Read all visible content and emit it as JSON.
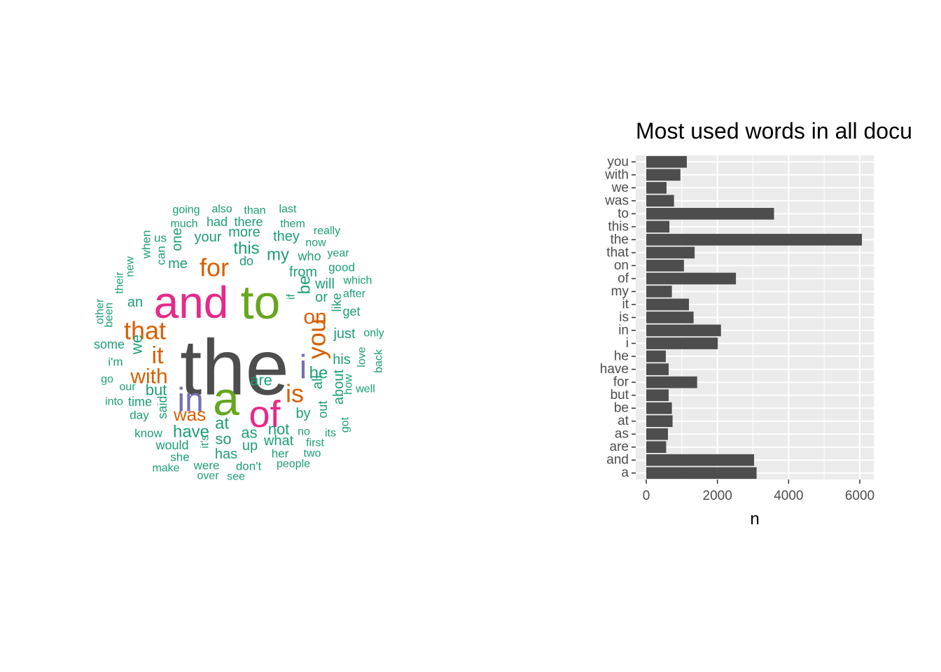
{
  "palette": {
    "gray": "#4d4d4d",
    "green": "#1b9e77",
    "orange": "#d95f02",
    "purple": "#7570b3",
    "magenta": "#e7298a",
    "olive": "#66a61e",
    "panel_bg": "#ebebeb",
    "bar": "#4d4d4d"
  },
  "wordcloud": {
    "words": [
      {
        "text": "the",
        "color": "gray"
      },
      {
        "text": "and",
        "color": "magenta"
      },
      {
        "text": "to",
        "color": "olive"
      },
      {
        "text": "a",
        "color": "olive"
      },
      {
        "text": "of",
        "color": "magenta"
      },
      {
        "text": "in",
        "color": "purple"
      },
      {
        "text": "i",
        "color": "purple"
      },
      {
        "text": "for",
        "color": "orange"
      },
      {
        "text": "that",
        "color": "orange"
      },
      {
        "text": "is",
        "color": "orange"
      },
      {
        "text": "it",
        "color": "orange"
      },
      {
        "text": "you",
        "color": "orange"
      },
      {
        "text": "on",
        "color": "orange"
      },
      {
        "text": "with",
        "color": "orange"
      },
      {
        "text": "was",
        "color": "orange"
      },
      {
        "text": "this",
        "color": "green"
      },
      {
        "text": "my",
        "color": "green"
      },
      {
        "text": "be",
        "color": "green"
      },
      {
        "text": "he",
        "color": "green"
      },
      {
        "text": "have",
        "color": "green"
      },
      {
        "text": "at",
        "color": "green"
      },
      {
        "text": "as",
        "color": "green"
      },
      {
        "text": "are",
        "color": "green"
      },
      {
        "text": "but",
        "color": "green"
      },
      {
        "text": "we",
        "color": "green"
      },
      {
        "text": "not",
        "color": "green"
      },
      {
        "text": "so",
        "color": "green"
      },
      {
        "text": "your",
        "color": "green"
      },
      {
        "text": "more",
        "color": "green"
      },
      {
        "text": "they",
        "color": "green"
      },
      {
        "text": "me",
        "color": "green"
      },
      {
        "text": "from",
        "color": "green"
      },
      {
        "text": "all",
        "color": "green"
      },
      {
        "text": "about",
        "color": "green"
      },
      {
        "text": "one",
        "color": "green"
      },
      {
        "text": "just",
        "color": "green"
      },
      {
        "text": "his",
        "color": "green"
      },
      {
        "text": "will",
        "color": "green"
      },
      {
        "text": "or",
        "color": "green"
      },
      {
        "text": "by",
        "color": "green"
      },
      {
        "text": "up",
        "color": "green"
      },
      {
        "text": "what",
        "color": "green"
      },
      {
        "text": "has",
        "color": "green"
      },
      {
        "text": "an",
        "color": "green"
      },
      {
        "text": "do",
        "color": "green"
      },
      {
        "text": "who",
        "color": "green"
      },
      {
        "text": "there",
        "color": "green"
      },
      {
        "text": "had",
        "color": "green"
      },
      {
        "text": "like",
        "color": "green"
      },
      {
        "text": "out",
        "color": "green"
      },
      {
        "text": "said",
        "color": "green"
      },
      {
        "text": "some",
        "color": "green"
      },
      {
        "text": "time",
        "color": "green"
      },
      {
        "text": "get",
        "color": "green"
      },
      {
        "text": "good",
        "color": "green"
      },
      {
        "text": "would",
        "color": "green"
      },
      {
        "text": "know",
        "color": "green"
      },
      {
        "text": "day",
        "color": "green"
      },
      {
        "text": "our",
        "color": "green"
      },
      {
        "text": "into",
        "color": "green"
      },
      {
        "text": "go",
        "color": "green"
      },
      {
        "text": "i'm",
        "color": "green"
      },
      {
        "text": "can",
        "color": "green"
      },
      {
        "text": "when",
        "color": "green"
      },
      {
        "text": "us",
        "color": "green"
      },
      {
        "text": "much",
        "color": "green"
      },
      {
        "text": "going",
        "color": "green"
      },
      {
        "text": "also",
        "color": "green"
      },
      {
        "text": "than",
        "color": "green"
      },
      {
        "text": "last",
        "color": "green"
      },
      {
        "text": "them",
        "color": "green"
      },
      {
        "text": "really",
        "color": "green"
      },
      {
        "text": "now",
        "color": "green"
      },
      {
        "text": "year",
        "color": "green"
      },
      {
        "text": "which",
        "color": "green"
      },
      {
        "text": "after",
        "color": "green"
      },
      {
        "text": "only",
        "color": "green"
      },
      {
        "text": "love",
        "color": "green"
      },
      {
        "text": "back",
        "color": "green"
      },
      {
        "text": "how",
        "color": "green"
      },
      {
        "text": "well",
        "color": "green"
      },
      {
        "text": "got",
        "color": "green"
      },
      {
        "text": "its",
        "color": "green"
      },
      {
        "text": "no",
        "color": "green"
      },
      {
        "text": "first",
        "color": "green"
      },
      {
        "text": "two",
        "color": "green"
      },
      {
        "text": "people",
        "color": "green"
      },
      {
        "text": "her",
        "color": "green"
      },
      {
        "text": "don't",
        "color": "green"
      },
      {
        "text": "see",
        "color": "green"
      },
      {
        "text": "over",
        "color": "green"
      },
      {
        "text": "were",
        "color": "green"
      },
      {
        "text": "it's",
        "color": "green"
      },
      {
        "text": "make",
        "color": "green"
      },
      {
        "text": "she",
        "color": "green"
      },
      {
        "text": "if",
        "color": "green"
      },
      {
        "text": "new",
        "color": "green"
      },
      {
        "text": "their",
        "color": "green"
      },
      {
        "text": "other",
        "color": "green"
      },
      {
        "text": "been",
        "color": "green"
      }
    ]
  },
  "chart_data": {
    "type": "bar",
    "orientation": "horizontal",
    "title": "Most used words in all docu",
    "xlabel": "n",
    "ylabel": "",
    "xlim": [
      0,
      6350
    ],
    "x_ticks": [
      0,
      2000,
      4000,
      6000
    ],
    "x_tick_labels": [
      "0",
      "2000",
      "4000",
      "6000"
    ],
    "grid": true,
    "categories": [
      "a",
      "and",
      "are",
      "as",
      "at",
      "be",
      "but",
      "for",
      "have",
      "he",
      "i",
      "in",
      "is",
      "it",
      "my",
      "of",
      "on",
      "that",
      "the",
      "this",
      "to",
      "was",
      "we",
      "with",
      "you"
    ],
    "values": [
      3100,
      3030,
      560,
      610,
      740,
      720,
      630,
      1430,
      630,
      550,
      2010,
      2100,
      1330,
      1200,
      720,
      2520,
      1060,
      1360,
      6060,
      650,
      3590,
      780,
      570,
      960,
      1140
    ]
  }
}
